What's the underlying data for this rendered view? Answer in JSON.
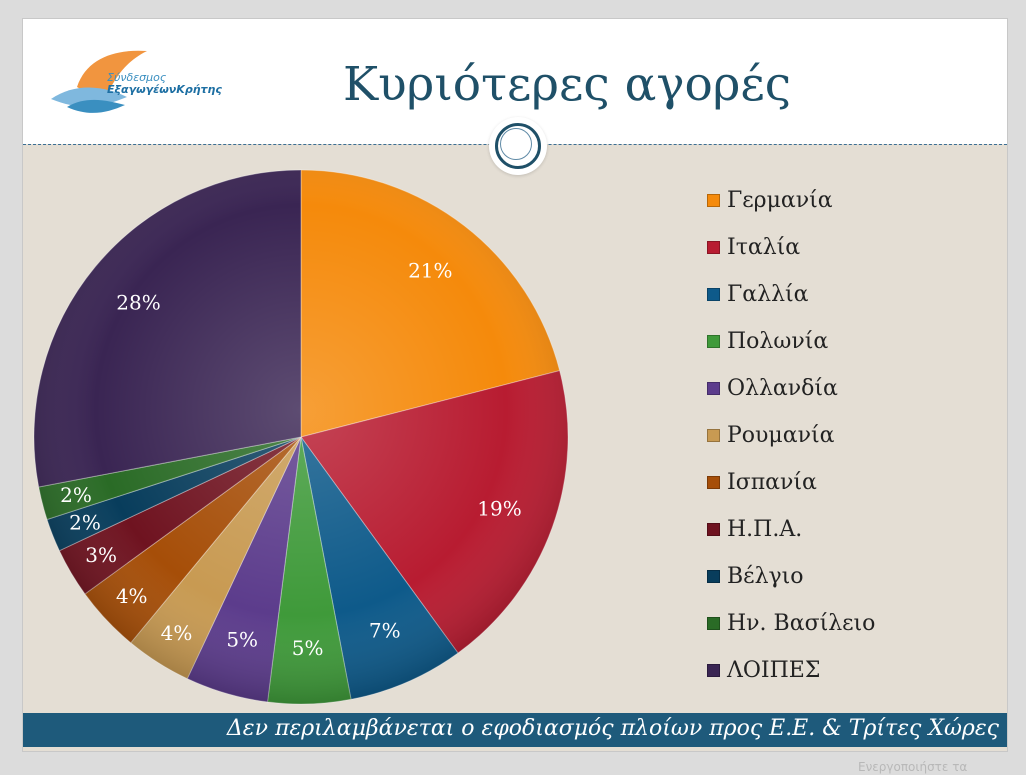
{
  "slide": {
    "title": "Κυριότερες αγορές",
    "logo": {
      "line1": "Σύνδεσμος",
      "line2": "ΕξαγωγέωνΚρήτης"
    },
    "footer": "Δεν περιλαμβάνεται ο εφοδιασμός πλοίων προς Ε.Ε. & Τρίτες Χώρες"
  },
  "watermark": "Ενεργοποιήστε τα",
  "chart_data": {
    "type": "pie",
    "title": "",
    "slices": [
      {
        "label": "Γερμανία",
        "value": 21,
        "pct_label": "21%",
        "color": "#f58a0b"
      },
      {
        "label": "Ιταλία",
        "value": 19,
        "pct_label": "19%",
        "color": "#b81c31"
      },
      {
        "label": "Γαλλία",
        "value": 7,
        "pct_label": "7%",
        "color": "#0e5a8a"
      },
      {
        "label": "Πολωνία",
        "value": 5,
        "pct_label": "5%",
        "color": "#3f9a3a"
      },
      {
        "label": "Ολλανδία",
        "value": 5,
        "pct_label": "5%",
        "color": "#5c3c8c"
      },
      {
        "label": "Ρουμανία",
        "value": 4,
        "pct_label": "4%",
        "color": "#c89a52"
      },
      {
        "label": "Ισπανία",
        "value": 4,
        "pct_label": "4%",
        "color": "#a64e08"
      },
      {
        "label": "Η.Π.Α.",
        "value": 3,
        "pct_label": "3%",
        "color": "#6f1320"
      },
      {
        "label": "Βέλγιο",
        "value": 2,
        "pct_label": "2%",
        "color": "#083d5c"
      },
      {
        "label": "Ην. Βασίλειο",
        "value": 2,
        "pct_label": "2%",
        "color": "#2a6b26"
      },
      {
        "label": "ΛΟΙΠΕΣ",
        "value": 28,
        "pct_label": "28%",
        "color": "#3a2553"
      }
    ],
    "legend_position": "right"
  }
}
